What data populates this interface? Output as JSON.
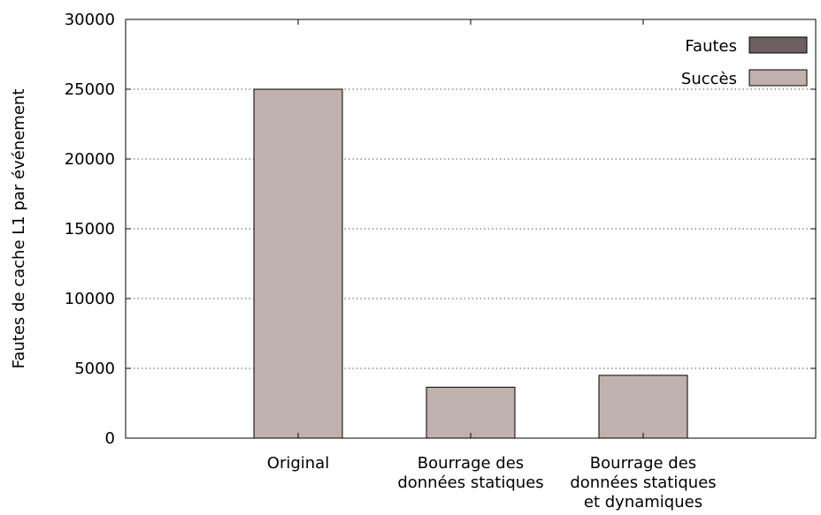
{
  "chart_data": {
    "type": "bar",
    "stacked": true,
    "categories": [
      [
        "Original"
      ],
      [
        "Bourrage des",
        "données statiques"
      ],
      [
        "Bourrage des",
        "données statiques",
        "et dynamiques"
      ]
    ],
    "series": [
      {
        "name": "Fautes",
        "color": "#6e5f62",
        "values": [
          0,
          0,
          0
        ]
      },
      {
        "name": "Succès",
        "color": "#bfb1ad",
        "values": [
          25000,
          3650,
          4500
        ]
      }
    ],
    "ylabel": "Fautes de cache L1 par événement",
    "ylim": [
      0,
      30000
    ],
    "yticks": [
      0,
      5000,
      10000,
      15000,
      20000,
      25000,
      30000
    ],
    "grid": true,
    "legend_position": "top-right"
  }
}
